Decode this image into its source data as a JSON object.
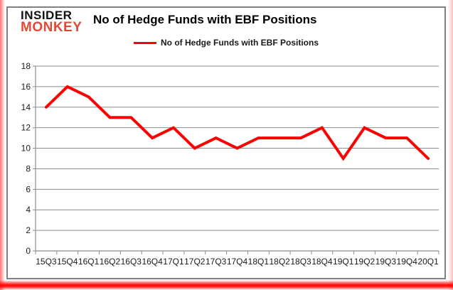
{
  "branding": {
    "line1": "INSIDER",
    "line2": "MONKEY",
    "accent_color": "#e04a35"
  },
  "header": {
    "title": "No of Hedge Funds with EBF Positions"
  },
  "legend": {
    "label": "No of Hedge Funds with EBF Positions",
    "line_color": "#ff0000"
  },
  "chart_data": {
    "type": "line",
    "title": "No of Hedge Funds with EBF Positions",
    "categories": [
      "15Q3",
      "15Q4",
      "16Q1",
      "16Q2",
      "16Q3",
      "16Q4",
      "17Q1",
      "17Q2",
      "17Q3",
      "17Q4",
      "18Q1",
      "18Q2",
      "18Q3",
      "18Q4",
      "19Q1",
      "19Q2",
      "19Q3",
      "19Q4",
      "20Q1"
    ],
    "series": [
      {
        "name": "No of Hedge Funds with EBF Positions",
        "color": "#ff0000",
        "values": [
          14,
          16,
          15,
          13,
          13,
          11,
          12,
          10,
          11,
          10,
          11,
          11,
          11,
          12,
          9,
          12,
          11,
          11,
          9
        ]
      }
    ],
    "ylim": [
      0,
      18
    ],
    "ytick_step": 2,
    "grid": true,
    "legend_position": "top",
    "xlabel": "",
    "ylabel": ""
  },
  "colors": {
    "grid": "#8c8c8c",
    "axis": "#8c8c8c",
    "tick_text": "#1a1a1a",
    "frame_border": "#808080",
    "red_accent": "#ff0000"
  }
}
